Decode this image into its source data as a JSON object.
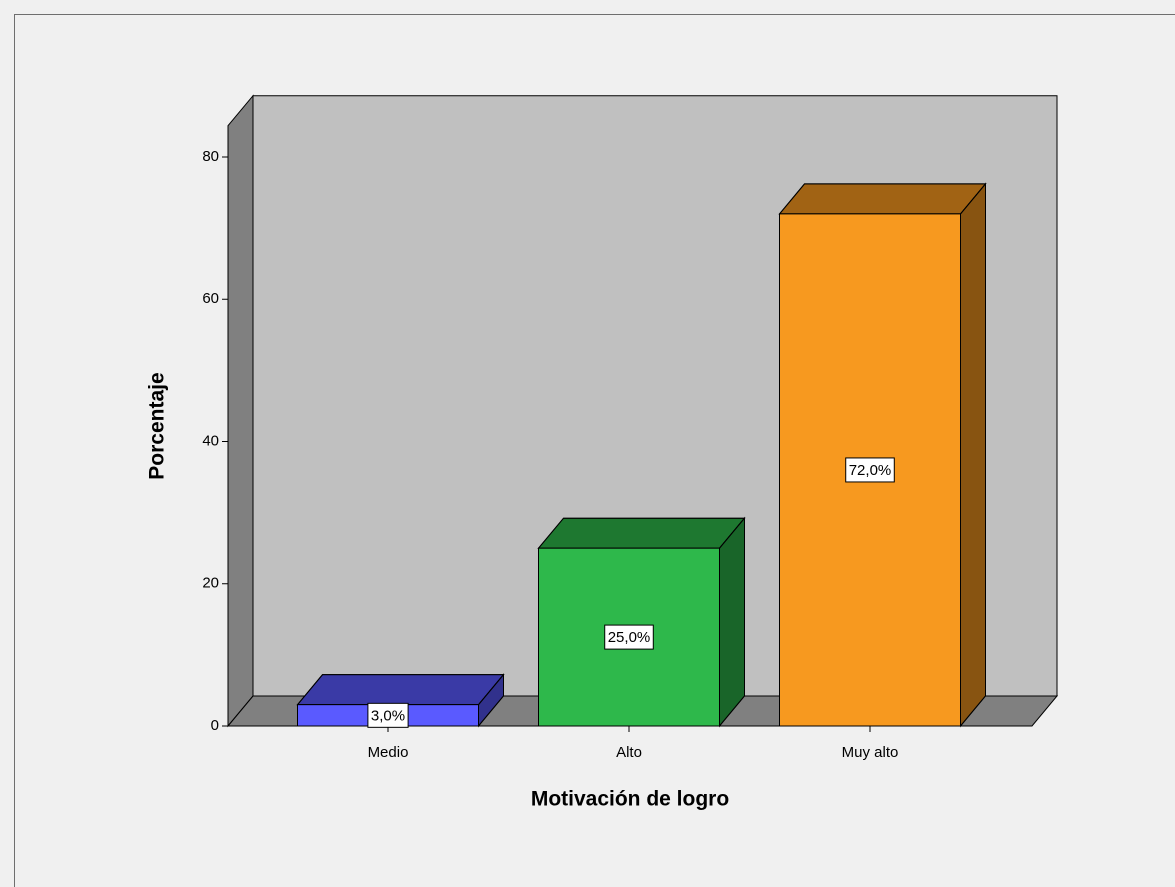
{
  "chart_data": {
    "type": "bar3d",
    "x_label": "Motivación de logro",
    "y_label": "Porcentaje",
    "categories": [
      "Medio",
      "Alto",
      "Muy alto"
    ],
    "values": [
      3.0,
      25.0,
      72.0
    ],
    "value_labels": [
      "3,0%",
      "25,0%",
      "72,0%"
    ],
    "colors": [
      "#5a5aff",
      "#2eb84b",
      "#f7991f"
    ],
    "ylim": [
      0,
      84.4
    ],
    "yticks": [
      0,
      20,
      40,
      60,
      80
    ]
  }
}
